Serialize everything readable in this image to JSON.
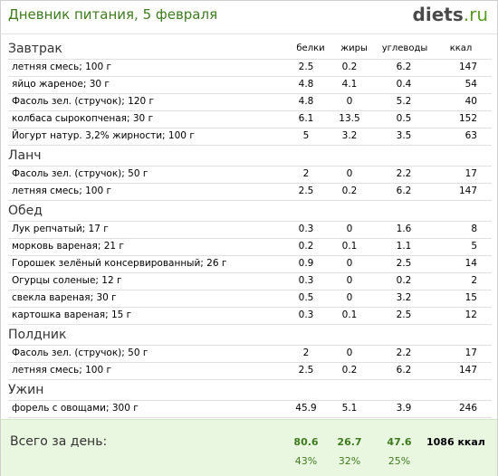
{
  "header": {
    "title": "Дневник питания, 5 февраля",
    "logo_main": "diets",
    "logo_tld": ".ru"
  },
  "columns": {
    "protein": "белки",
    "fat": "жиры",
    "carbs": "углеводы",
    "kcal": "ккал"
  },
  "meals": [
    {
      "title": "Завтрак",
      "items": [
        {
          "name": "летняя смесь; 100 г",
          "p": "2.5",
          "f": "0.2",
          "c": "6.2",
          "k": "147"
        },
        {
          "name": "яйцо жареное; 30 г",
          "p": "4.8",
          "f": "4.1",
          "c": "0.4",
          "k": "54"
        },
        {
          "name": "Фасоль зел. (стручок); 120 г",
          "p": "4.8",
          "f": "0",
          "c": "5.2",
          "k": "40"
        },
        {
          "name": "колбаса сырокопченая; 30 г",
          "p": "6.1",
          "f": "13.5",
          "c": "0.5",
          "k": "152"
        },
        {
          "name": "Йогурт натур. 3,2% жирности; 100 г",
          "p": "5",
          "f": "3.2",
          "c": "3.5",
          "k": "63"
        }
      ]
    },
    {
      "title": "Ланч",
      "items": [
        {
          "name": "Фасоль зел. (стручок); 50 г",
          "p": "2",
          "f": "0",
          "c": "2.2",
          "k": "17"
        },
        {
          "name": "летняя смесь; 100 г",
          "p": "2.5",
          "f": "0.2",
          "c": "6.2",
          "k": "147"
        }
      ]
    },
    {
      "title": "Обед",
      "items": [
        {
          "name": "Лук репчатый; 17 г",
          "p": "0.3",
          "f": "0",
          "c": "1.6",
          "k": "8"
        },
        {
          "name": "морковь вареная; 21 г",
          "p": "0.2",
          "f": "0.1",
          "c": "1.1",
          "k": "5"
        },
        {
          "name": "Горошек зелёный консервированный; 26 г",
          "p": "0.9",
          "f": "0",
          "c": "2.5",
          "k": "14"
        },
        {
          "name": "Огурцы соленые; 12 г",
          "p": "0.3",
          "f": "0",
          "c": "0.2",
          "k": "2"
        },
        {
          "name": "свекла вареная; 30 г",
          "p": "0.5",
          "f": "0",
          "c": "3.2",
          "k": "15"
        },
        {
          "name": "картошка вареная; 15 г",
          "p": "0.3",
          "f": "0.1",
          "c": "2.5",
          "k": "12"
        }
      ]
    },
    {
      "title": "Полдник",
      "items": [
        {
          "name": "Фасоль зел. (стручок); 50 г",
          "p": "2",
          "f": "0",
          "c": "2.2",
          "k": "17"
        },
        {
          "name": "летняя смесь; 100 г",
          "p": "2.5",
          "f": "0.2",
          "c": "6.2",
          "k": "147"
        }
      ]
    },
    {
      "title": "Ужин",
      "items": [
        {
          "name": "форель с овощами; 300 г",
          "p": "45.9",
          "f": "5.1",
          "c": "3.9",
          "k": "246"
        }
      ]
    }
  ],
  "total": {
    "label": "Всего за день:",
    "protein": "80.6",
    "fat": "26.7",
    "carbs": "47.6",
    "kcal": "1086 ккал",
    "protein_pct": "43%",
    "fat_pct": "32%",
    "carbs_pct": "25%"
  }
}
